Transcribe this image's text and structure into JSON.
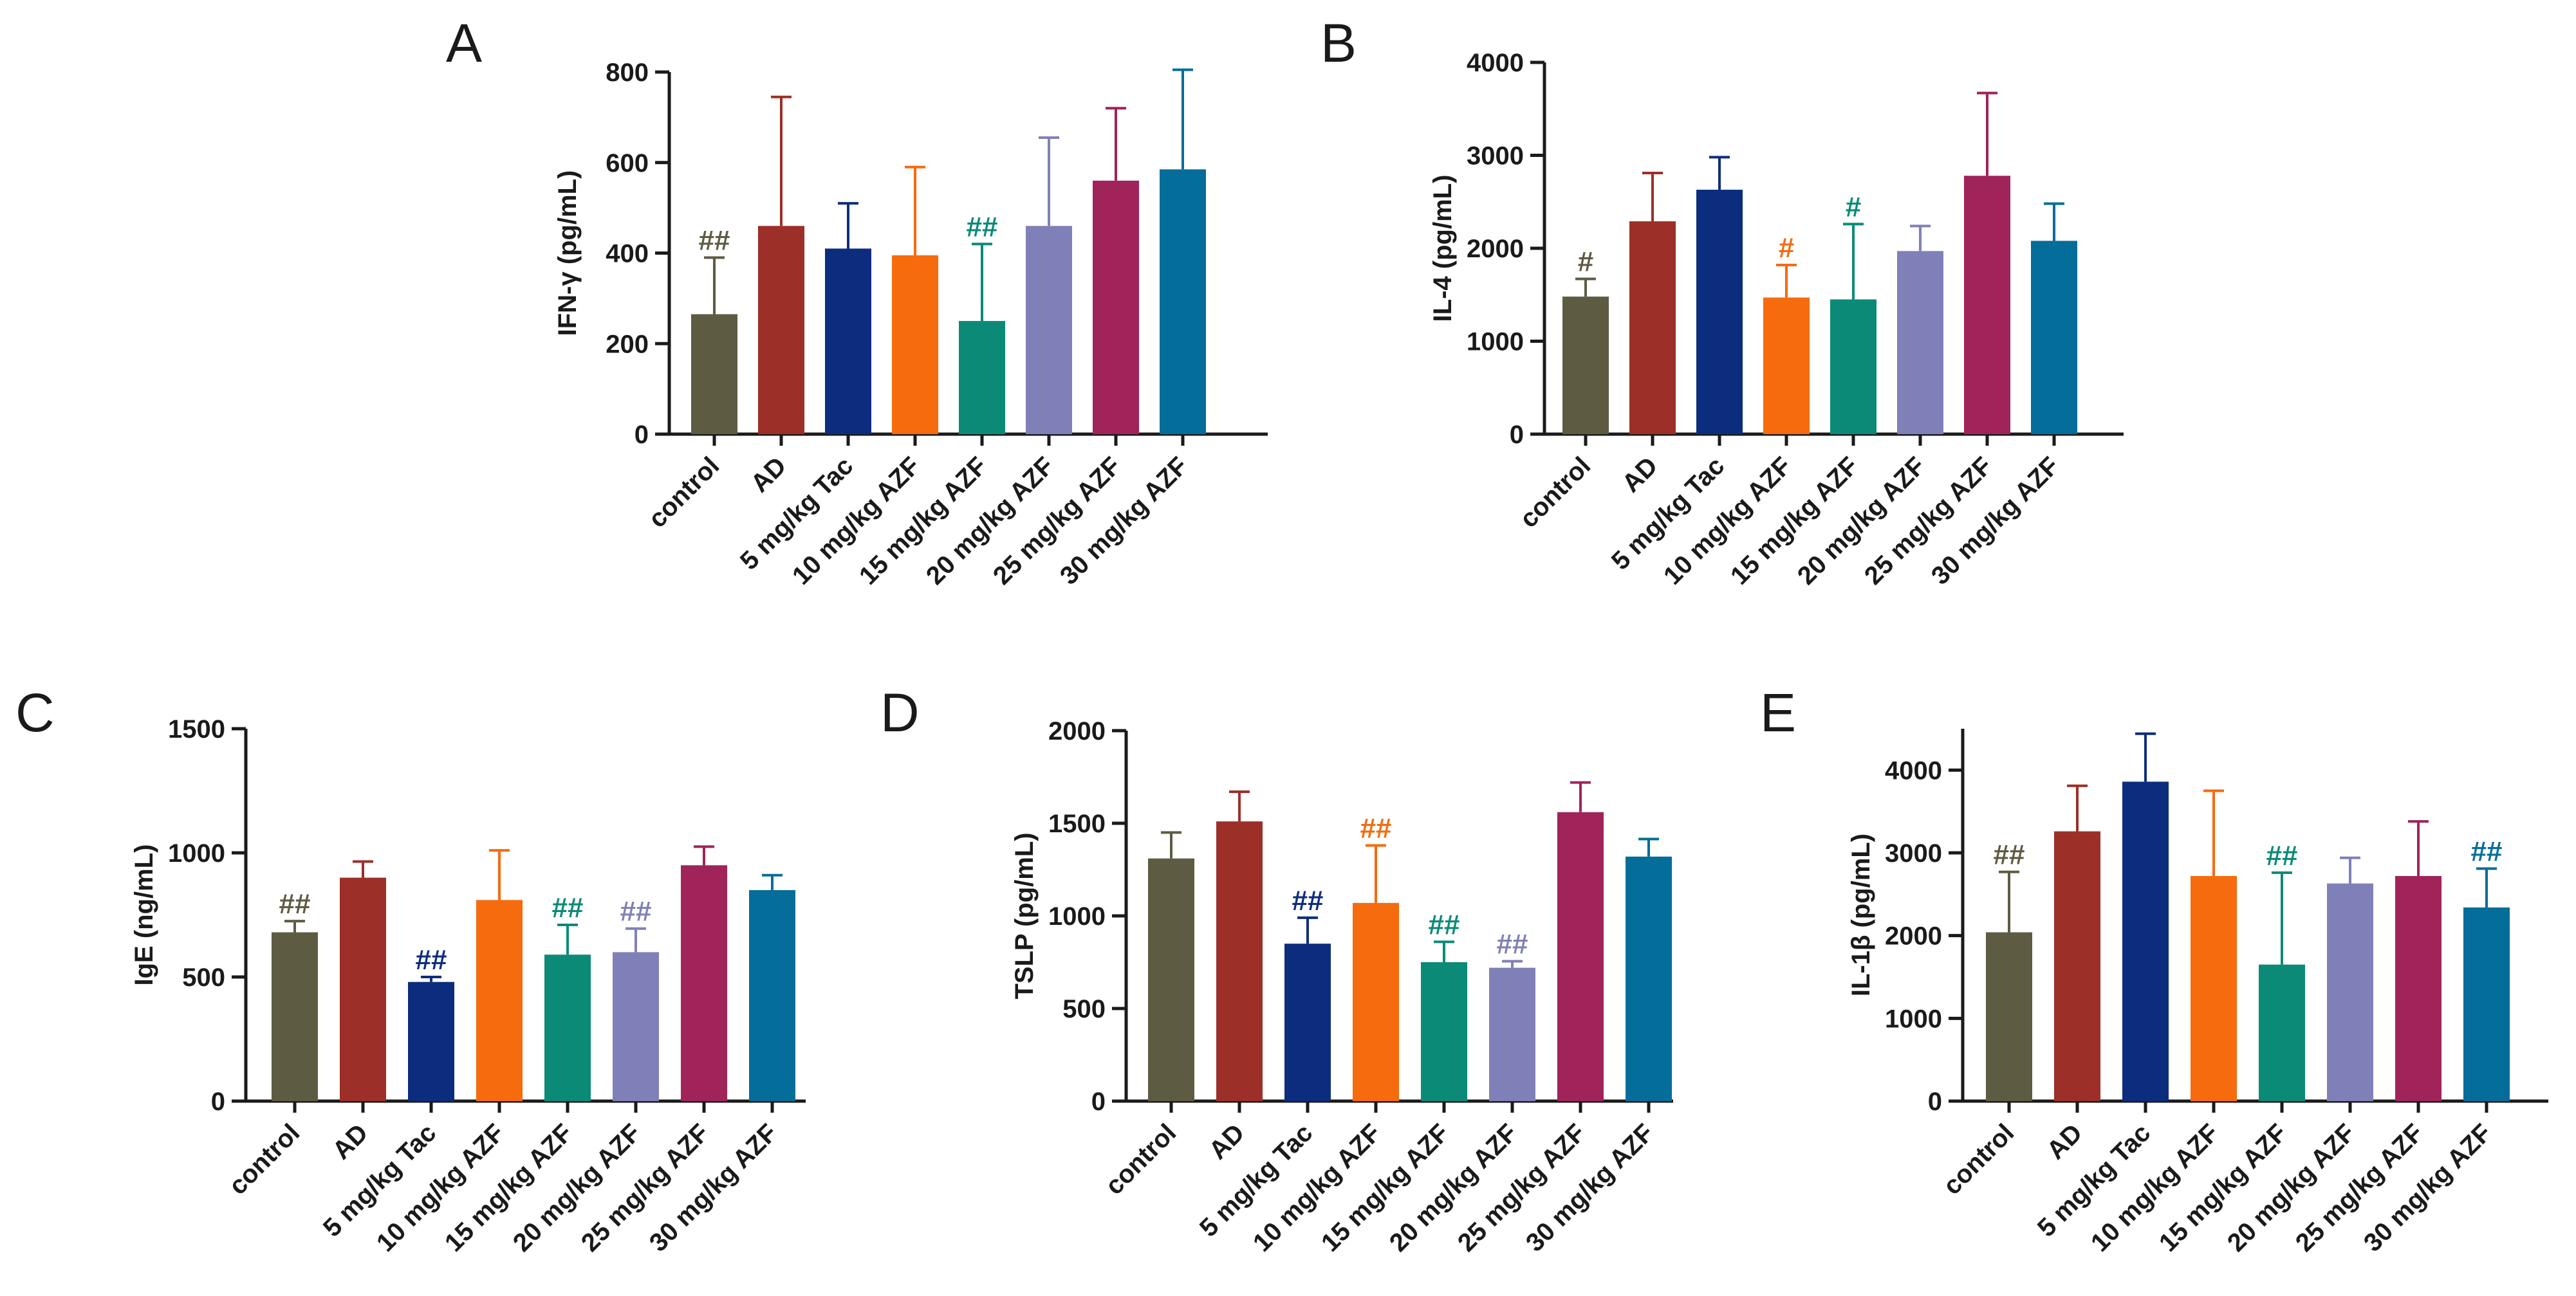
{
  "colors": {
    "control": "#5e5b43",
    "AD": "#9c2f27",
    "5 mg/kg Tac": "#0c2d7e",
    "10 mg/kg AZF": "#f56b0e",
    "15 mg/kg AZF": "#0b8a77",
    "20 mg/kg AZF": "#8080b8",
    "25 mg/kg AZF": "#a0235a",
    "30 mg/kg AZF": "#056d99"
  },
  "chart_data": [
    {
      "panel": "A",
      "type": "bar",
      "ylabel": "IFN-γ (pg/mL)",
      "ylim": [
        0,
        800
      ],
      "yticks": [
        "0",
        "200",
        "400",
        "600",
        "800"
      ],
      "categories": [
        "control",
        "AD",
        "5 mg/kg Tac",
        "10 mg/kg AZF",
        "15 mg/kg AZF",
        "20 mg/kg AZF",
        "25 mg/kg AZF",
        "30 mg/kg AZF"
      ],
      "values": [
        265,
        460,
        410,
        395,
        250,
        460,
        560,
        585
      ],
      "errors": [
        125,
        285,
        100,
        195,
        170,
        195,
        160,
        220
      ],
      "significance": [
        "##",
        "",
        "",
        "",
        "##",
        "",
        "",
        ""
      ]
    },
    {
      "panel": "B",
      "type": "bar",
      "ylabel": "IL-4 (pg/mL)",
      "ylim": [
        0,
        4000
      ],
      "yticks": [
        "0",
        "1000",
        "2000",
        "3000",
        "4000"
      ],
      "categories": [
        "control",
        "AD",
        "5 mg/kg Tac",
        "10 mg/kg AZF",
        "15 mg/kg AZF",
        "20 mg/kg AZF",
        "25 mg/kg AZF",
        "30 mg/kg AZF"
      ],
      "values": [
        1480,
        2290,
        2630,
        1470,
        1450,
        1970,
        2780,
        2080
      ],
      "errors": [
        190,
        520,
        350,
        350,
        810,
        270,
        890,
        400
      ],
      "significance": [
        "#",
        "",
        "",
        "#",
        "#",
        "",
        "",
        ""
      ]
    },
    {
      "panel": "C",
      "type": "bar",
      "ylabel": "IgE (ng/mL)",
      "ylim": [
        0,
        1500
      ],
      "yticks": [
        "0",
        "500",
        "1000",
        "1500"
      ],
      "categories": [
        "control",
        "AD",
        "5 mg/kg Tac",
        "10 mg/kg AZF",
        "15 mg/kg AZF",
        "20 mg/kg AZF",
        "25 mg/kg AZF",
        "30 mg/kg AZF"
      ],
      "values": [
        680,
        900,
        480,
        810,
        590,
        600,
        950,
        850
      ],
      "errors": [
        45,
        65,
        20,
        200,
        120,
        95,
        75,
        60
      ],
      "significance": [
        "##",
        "",
        "##",
        "",
        "##",
        "##",
        "",
        ""
      ]
    },
    {
      "panel": "D",
      "type": "bar",
      "ylabel": "TSLP (pg/mL)",
      "ylim": [
        0,
        2000
      ],
      "yticks": [
        "0",
        "500",
        "1000",
        "1500",
        "2000"
      ],
      "categories": [
        "control",
        "AD",
        "5 mg/kg Tac",
        "10 mg/kg AZF",
        "15 mg/kg AZF",
        "20 mg/kg AZF",
        "25 mg/kg AZF",
        "30 mg/kg AZF"
      ],
      "values": [
        1310,
        1510,
        850,
        1070,
        750,
        720,
        1560,
        1320
      ],
      "errors": [
        140,
        160,
        140,
        310,
        110,
        35,
        160,
        95
      ],
      "significance": [
        "",
        "",
        "##",
        "##",
        "##",
        "##",
        "",
        ""
      ]
    },
    {
      "panel": "E",
      "type": "bar",
      "ylabel": "IL-1β (pg/mL)",
      "ylim": [
        0,
        4500
      ],
      "yticks": [
        "0",
        "1000",
        "2000",
        "3000",
        "4000"
      ],
      "categories": [
        "control",
        "AD",
        "5 mg/kg Tac",
        "10 mg/kg AZF",
        "15 mg/kg AZF",
        "20 mg/kg AZF",
        "25 mg/kg AZF",
        "30 mg/kg AZF"
      ],
      "values": [
        2040,
        3260,
        3860,
        2720,
        1650,
        2630,
        2720,
        2340
      ],
      "errors": [
        730,
        550,
        580,
        1030,
        1110,
        310,
        660,
        470
      ],
      "significance": [
        "##",
        "",
        "",
        "",
        "##",
        "",
        "",
        "##"
      ]
    }
  ]
}
